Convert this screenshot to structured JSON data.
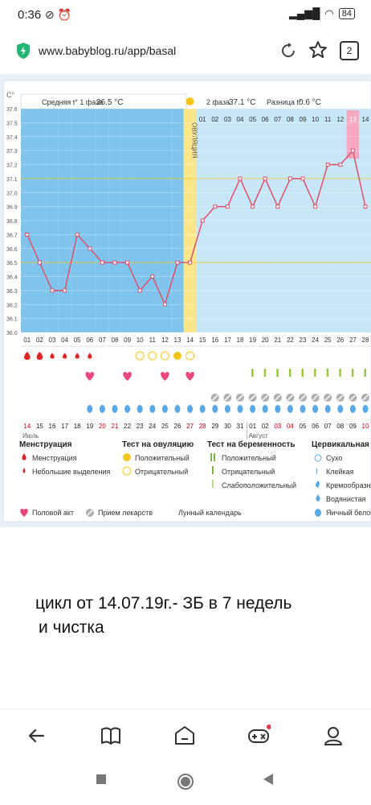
{
  "status_bar": {
    "time": "0:36",
    "battery": "84"
  },
  "browser": {
    "url": "www.babyblog.ru/app/basal",
    "tab_count": "2"
  },
  "chart_header": {
    "unit": "C°",
    "phase1_label": "Средняя t° 1 фаза",
    "phase1_value": "36.5 °C",
    "phase2_label": "2 фаза",
    "phase2_value": "37.1 °C",
    "diff_label": "Разница t°",
    "diff_value": "0.6 °C",
    "ovulation_label": "ОВУЛЯЦИЯ"
  },
  "chart_data": {
    "type": "line",
    "yticks": [
      "37.6",
      "37.5",
      "37.4",
      "37.3",
      "37.2",
      "37.1",
      "37.0",
      "36.9",
      "36.8",
      "36.7",
      "36.6",
      "36.5",
      "36.4",
      "36.3",
      "36.2",
      "36.1",
      "36.0"
    ],
    "ylim": [
      36.0,
      37.6
    ],
    "x": [
      "01",
      "02",
      "03",
      "04",
      "05",
      "06",
      "07",
      "08",
      "09",
      "10",
      "11",
      "12",
      "13",
      "14",
      "15",
      "16",
      "17",
      "18",
      "19",
      "20",
      "21",
      "22",
      "23",
      "24",
      "25",
      "26",
      "27",
      "28"
    ],
    "values": [
      36.7,
      36.5,
      36.3,
      36.3,
      36.7,
      36.6,
      36.5,
      36.5,
      36.5,
      36.3,
      36.4,
      36.2,
      36.5,
      36.5,
      36.8,
      36.9,
      36.9,
      37.1,
      36.9,
      37.1,
      36.9,
      37.1,
      37.1,
      36.9,
      37.2,
      37.2,
      37.3,
      36.9
    ],
    "phase2_day_labels": [
      "01",
      "02",
      "03",
      "04",
      "05",
      "06",
      "07",
      "08",
      "09",
      "10",
      "11",
      "12",
      "13",
      "14"
    ],
    "ovulation_day": "14",
    "phase1_avg": 36.5,
    "phase2_avg": 37.1,
    "highlight_phase2_day": "13"
  },
  "dates": {
    "values": [
      "14",
      "15",
      "16",
      "17",
      "18",
      "19",
      "20",
      "21",
      "22",
      "23",
      "24",
      "25",
      "26",
      "27",
      "28",
      "29",
      "30",
      "31",
      "01",
      "02",
      "03",
      "04",
      "05",
      "06",
      "07",
      "08",
      "09",
      "10"
    ],
    "colors": [
      "#d0021b",
      "#222",
      "#222",
      "#222",
      "#222",
      "#222",
      "#d0021b",
      "#d0021b",
      "#222",
      "#222",
      "#222",
      "#222",
      "#222",
      "#d0021b",
      "#d0021b",
      "#222",
      "#222",
      "#222",
      "#222",
      "#222",
      "#d0021b",
      "#d0021b",
      "#222",
      "#222",
      "#222",
      "#222",
      "#222",
      "#d0021b"
    ],
    "month1": "Июль",
    "month2": "Август"
  },
  "legend": {
    "col1_title": "Менструация",
    "col1_items": [
      "Менструация",
      "Небольшие выделения"
    ],
    "col2_title": "Тест на овуляцию",
    "col2_items": [
      "Положительный",
      "Отрицательный"
    ],
    "col3_title": "Тест на беременность",
    "col3_items": [
      "Положительный",
      "Отрицательный",
      "Слабоположительный"
    ],
    "col4_title": "Цервикальная жидкость",
    "col4_items": [
      "Сухо",
      "Клейкая",
      "Кремообразная",
      "Водянистая",
      "Яичный белок"
    ],
    "bottom_items": [
      "Половой акт",
      "Прием лекарств",
      "Лунный календарь"
    ]
  },
  "caption": {
    "line1": "цикл от 14.07.19г.- ЗБ в 7 недель",
    "line2": "и чистка"
  },
  "colors": {
    "phase1": "#7fc4ec",
    "phase2": "#c7e6f8",
    "ovulation": "#fde68a",
    "line": "#e0506b",
    "menstruation": "#e02424",
    "heart": "#e64980",
    "drop": "#5aa9e6",
    "test": "#9bc53d",
    "pill": "#b0b0b0",
    "moon": "#f5a623"
  }
}
